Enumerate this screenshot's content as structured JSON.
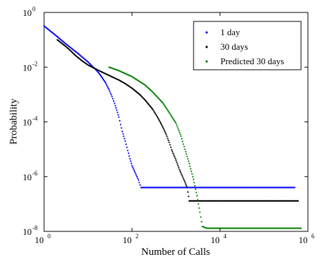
{
  "chart_data": {
    "type": "scatter",
    "title": "",
    "xlabel": "Number of Calls",
    "ylabel": "Probability",
    "x_scale": "log",
    "y_scale": "log",
    "xlim": [
      1,
      1000000
    ],
    "ylim": [
      1e-08,
      1
    ],
    "x_ticks": [
      {
        "base": "10",
        "exp": "0",
        "value": 1
      },
      {
        "base": "10",
        "exp": "2",
        "value": 100
      },
      {
        "base": "10",
        "exp": "4",
        "value": 10000
      },
      {
        "base": "10",
        "exp": "6",
        "value": 1000000
      }
    ],
    "y_ticks": [
      {
        "base": "10",
        "exp": "0",
        "value": 1
      },
      {
        "base": "10",
        "exp": "-2",
        "value": 0.01
      },
      {
        "base": "10",
        "exp": "-4",
        "value": 0.0001
      },
      {
        "base": "10",
        "exp": "-6",
        "value": 1e-06
      },
      {
        "base": "10",
        "exp": "-8",
        "value": 1e-08
      }
    ],
    "grid": false,
    "legend_position": "top-right",
    "series": [
      {
        "name": "1 day",
        "color": "#0000ff",
        "marker": "dot",
        "points": [
          [
            1,
            0.32
          ],
          [
            2,
            0.13
          ],
          [
            3,
            0.075
          ],
          [
            4,
            0.052
          ],
          [
            5,
            0.039
          ],
          [
            6,
            0.031
          ],
          [
            7,
            0.025
          ],
          [
            8,
            0.021
          ],
          [
            10,
            0.0155
          ],
          [
            12,
            0.0115
          ],
          [
            15,
            0.0082
          ],
          [
            18,
            0.0058
          ],
          [
            20,
            0.0046
          ],
          [
            25,
            0.0027
          ],
          [
            30,
            0.0015
          ],
          [
            35,
            0.00085
          ],
          [
            40,
            0.00048
          ],
          [
            45,
            0.00027
          ],
          [
            50,
            0.00015
          ],
          [
            55,
            8e-05
          ],
          [
            60,
            4.5e-05
          ],
          [
            70,
            2e-05
          ],
          [
            80,
            9e-06
          ],
          [
            90,
            4.5e-06
          ],
          [
            100,
            2.5e-06
          ],
          [
            120,
            1.3e-06
          ],
          [
            140,
            7.5e-07
          ],
          [
            160,
            4e-07
          ],
          [
            200,
            4e-07
          ],
          [
            300,
            4e-07
          ],
          [
            500,
            4e-07
          ],
          [
            1000,
            4e-07
          ],
          [
            2000,
            4e-07
          ],
          [
            5000,
            4e-07
          ],
          [
            20000,
            4e-07
          ],
          [
            100000,
            4e-07
          ],
          [
            500000,
            4e-07
          ]
        ]
      },
      {
        "name": "30 days",
        "color": "#000000",
        "marker": "dot",
        "points": [
          [
            2,
            0.1
          ],
          [
            3,
            0.06
          ],
          [
            4,
            0.04
          ],
          [
            5,
            0.028
          ],
          [
            7,
            0.018
          ],
          [
            10,
            0.012
          ],
          [
            15,
            0.0085
          ],
          [
            20,
            0.0068
          ],
          [
            30,
            0.005
          ],
          [
            50,
            0.0034
          ],
          [
            70,
            0.0025
          ],
          [
            100,
            0.0017
          ],
          [
            150,
            0.001
          ],
          [
            200,
            0.00062
          ],
          [
            300,
            0.00028
          ],
          [
            400,
            0.00013
          ],
          [
            500,
            6.5e-05
          ],
          [
            600,
            3.5e-05
          ],
          [
            700,
            1.8e-05
          ],
          [
            800,
            9.5e-06
          ],
          [
            1000,
            4e-06
          ],
          [
            1200,
            1.8e-06
          ],
          [
            1500,
            8e-07
          ],
          [
            1800,
            4e-07
          ],
          [
            2000,
            1.3e-07
          ],
          [
            3000,
            1.3e-07
          ],
          [
            5000,
            1.3e-07
          ],
          [
            10000,
            1.3e-07
          ],
          [
            50000,
            1.3e-07
          ],
          [
            200000,
            1.3e-07
          ],
          [
            600000,
            1.3e-07
          ]
        ]
      },
      {
        "name": "Predicted 30 days",
        "color": "#008000",
        "marker": "dot",
        "points": [
          [
            30,
            0.01
          ],
          [
            50,
            0.0075
          ],
          [
            100,
            0.0045
          ],
          [
            200,
            0.0022
          ],
          [
            300,
            0.0012
          ],
          [
            500,
            0.0005
          ],
          [
            700,
            0.00022
          ],
          [
            1000,
            9e-05
          ],
          [
            1300,
            3e-05
          ],
          [
            1600,
            1e-05
          ],
          [
            2000,
            3e-06
          ],
          [
            2500,
            8e-07
          ],
          [
            3000,
            2e-07
          ],
          [
            3500,
            5e-08
          ],
          [
            4000,
            1.5e-08
          ],
          [
            5000,
            1.3e-08
          ],
          [
            10000,
            1.3e-08
          ],
          [
            50000,
            1.3e-08
          ],
          [
            200000,
            1.3e-08
          ],
          [
            700000,
            1.3e-08
          ]
        ]
      }
    ]
  }
}
